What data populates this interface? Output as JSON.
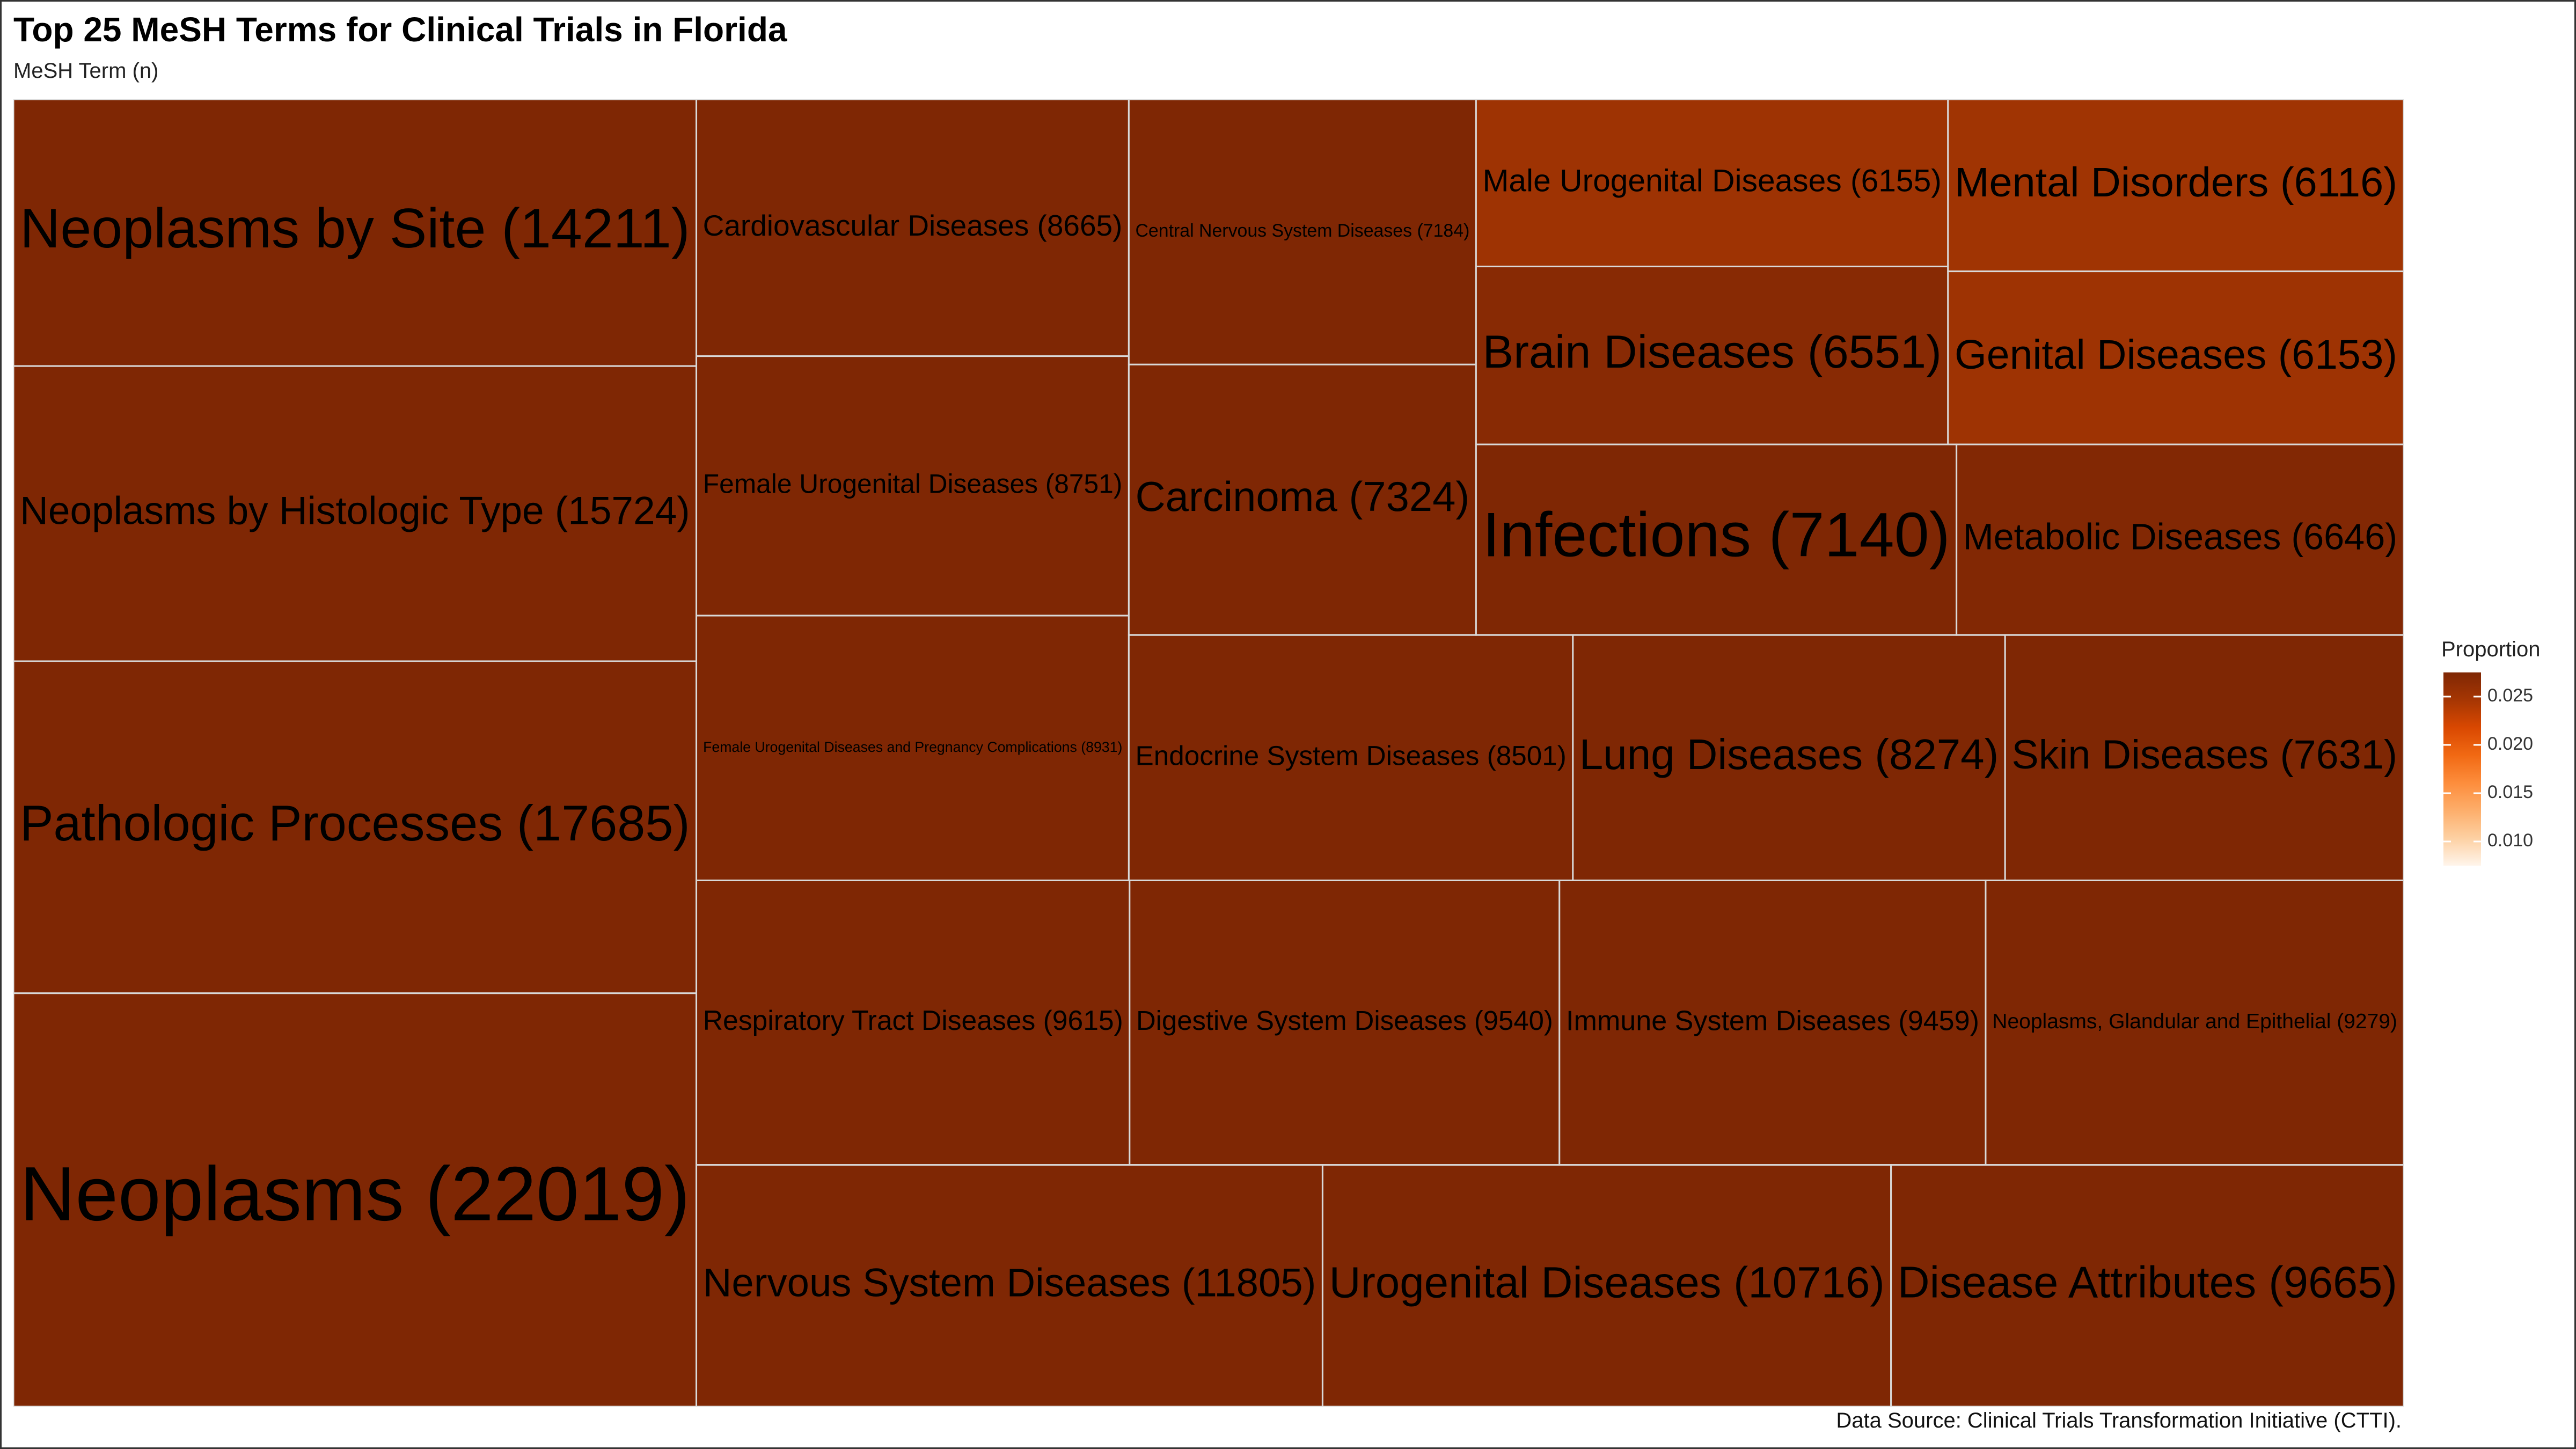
{
  "title": "Top 25 MeSH Terms for Clinical Trials in Florida",
  "subtitle": "MeSH Term (n)",
  "caption": "Data Source: Clinical Trials Transformation Initiative (CTTI).",
  "legend": {
    "title": "Proportion",
    "ticks": [
      "0.025",
      "0.020",
      "0.015",
      "0.010"
    ],
    "tick_values": [
      0.025,
      0.02,
      0.015,
      0.01
    ],
    "range": [
      0.0075,
      0.0275
    ],
    "colors": [
      "#fff5eb",
      "#fdd0a2",
      "#fdae6b",
      "#fd8d3c",
      "#f16913",
      "#d94801",
      "#a63603",
      "#7f2704"
    ]
  },
  "chart_data": {
    "type": "treemap",
    "title": "Top 25 MeSH Terms for Clinical Trials in Florida",
    "subtitle": "MeSH Term (n)",
    "color_scale": {
      "label": "Proportion",
      "min": 0.0075,
      "max": 0.0275
    },
    "items": [
      {
        "name": "Neoplasms",
        "n": 22019
      },
      {
        "name": "Pathologic Processes",
        "n": 17685
      },
      {
        "name": "Neoplasms by Histologic Type",
        "n": 15724
      },
      {
        "name": "Neoplasms by Site",
        "n": 14211
      },
      {
        "name": "Nervous System Diseases",
        "n": 11805
      },
      {
        "name": "Urogenital Diseases",
        "n": 10716
      },
      {
        "name": "Disease Attributes",
        "n": 9665
      },
      {
        "name": "Respiratory Tract Diseases",
        "n": 9615
      },
      {
        "name": "Digestive System Diseases",
        "n": 9540
      },
      {
        "name": "Immune System Diseases",
        "n": 9459
      },
      {
        "name": "Neoplasms, Glandular and Epithelial",
        "n": 9279
      },
      {
        "name": "Female Urogenital Diseases and Pregnancy Complications",
        "n": 8931
      },
      {
        "name": "Female Urogenital Diseases",
        "n": 8751
      },
      {
        "name": "Cardiovascular Diseases",
        "n": 8665
      },
      {
        "name": "Endocrine System Diseases",
        "n": 8501
      },
      {
        "name": "Lung Diseases",
        "n": 8274
      },
      {
        "name": "Skin Diseases",
        "n": 7631
      },
      {
        "name": "Carcinoma",
        "n": 7324
      },
      {
        "name": "Central Nervous System Diseases",
        "n": 7184
      },
      {
        "name": "Infections",
        "n": 7140
      },
      {
        "name": "Metabolic Diseases",
        "n": 6646
      },
      {
        "name": "Brain Diseases",
        "n": 6551
      },
      {
        "name": "Male Urogenital Diseases",
        "n": 6155
      },
      {
        "name": "Genital Diseases",
        "n": 6153
      },
      {
        "name": "Mental Disorders",
        "n": 6116
      }
    ]
  }
}
